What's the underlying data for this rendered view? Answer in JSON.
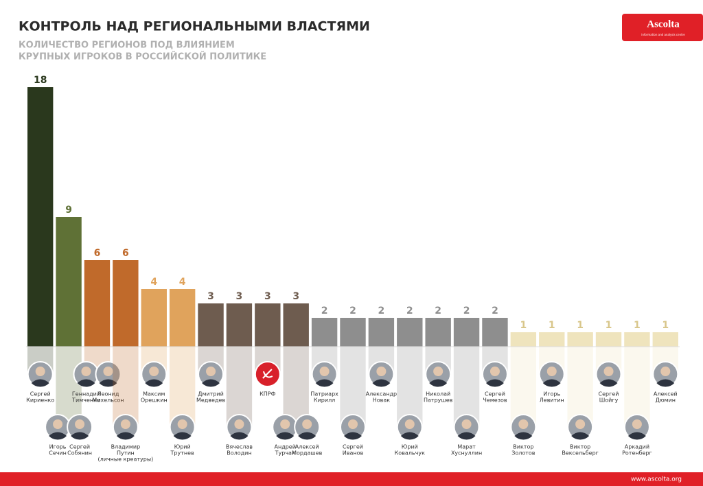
{
  "header": {
    "logo": "Ascolta",
    "logo_tagline": "information and analysis centre"
  },
  "footer": {
    "url": "www.ascolta.org"
  },
  "chart_data": {
    "type": "bar",
    "title": "КОНТРОЛЬ НАД РЕГИОНАЛЬНЫМИ ВЛАСТЯМИ",
    "subtitle": [
      "КОЛИЧЕСТВО РЕГИОНОВ ПОД ВЛИЯНИЕМ",
      "КРУПНЫХ ИГРОКОВ В РОССИЙСКОЙ ПОЛИТИКЕ"
    ],
    "categories": [
      [
        [
          "Сергей",
          "Кириенко"
        ]
      ],
      [
        [
          "Игорь",
          "Сечин"
        ],
        [
          "Сергей",
          "Собянин"
        ]
      ],
      [
        [
          "Геннадий",
          "Тимченко"
        ],
        [
          "Леонид",
          "Михельсон"
        ]
      ],
      [
        [
          "Владимир",
          "Путин",
          "(личные креатуры)"
        ]
      ],
      [
        [
          "Максим",
          "Орешкин"
        ]
      ],
      [
        [
          "Юрий",
          "Трутнев"
        ]
      ],
      [
        [
          "Дмитрий",
          "Медведев"
        ]
      ],
      [
        [
          "Вячеслав",
          "Володин"
        ]
      ],
      [
        [
          "КПРФ"
        ]
      ],
      [
        [
          "Андрей",
          "Турчак"
        ],
        [
          "Алексей",
          "Мордашев"
        ]
      ],
      [
        [
          "Патриарх",
          "Кирилл"
        ]
      ],
      [
        [
          "Сергей",
          "Иванов"
        ]
      ],
      [
        [
          "Александр",
          "Новак"
        ]
      ],
      [
        [
          "Юрий",
          "Ковальчук"
        ]
      ],
      [
        [
          "Николай",
          "Патрушев"
        ]
      ],
      [
        [
          "Марат",
          "Хуснуллин"
        ]
      ],
      [
        [
          "Сергей",
          "Чемезов"
        ]
      ],
      [
        [
          "Виктор",
          "Золотов"
        ]
      ],
      [
        [
          "Игорь",
          "Левитин"
        ]
      ],
      [
        [
          "Виктор",
          "Вексельберг"
        ]
      ],
      [
        [
          "Сергей",
          "Шойгу"
        ]
      ],
      [
        [
          "Аркадий",
          "Ротенберг"
        ]
      ],
      [
        [
          "Алексей",
          "Дюмин"
        ]
      ]
    ],
    "values": [
      18,
      9,
      6,
      6,
      4,
      4,
      3,
      3,
      3,
      3,
      2,
      2,
      2,
      2,
      2,
      2,
      2,
      1,
      1,
      1,
      1,
      1,
      1
    ],
    "colors": [
      "#2a381d",
      "#5f7136",
      "#c06a2b",
      "#c06a2b",
      "#e0a35c",
      "#e0a35c",
      "#6e5c4f",
      "#6e5c4f",
      "#6e5c4f",
      "#6e5c4f",
      "#8e8e8e",
      "#8e8e8e",
      "#8e8e8e",
      "#8e8e8e",
      "#8e8e8e",
      "#8e8e8e",
      "#8e8e8e",
      "#efe4bd",
      "#efe4bd",
      "#efe4bd",
      "#efe4bd",
      "#efe4bd",
      "#efe4bd"
    ],
    "label_colors": [
      "#2a381d",
      "#5f7136",
      "#c06a2b",
      "#c06a2b",
      "#e0a35c",
      "#e0a35c",
      "#6e5c4f",
      "#6e5c4f",
      "#6e5c4f",
      "#6e5c4f",
      "#8e8e8e",
      "#8e8e8e",
      "#8e8e8e",
      "#8e8e8e",
      "#8e8e8e",
      "#8e8e8e",
      "#8e8e8e",
      "#d8c68a",
      "#d8c68a",
      "#d8c68a",
      "#d8c68a",
      "#d8c68a",
      "#d8c68a"
    ],
    "ylim": [
      0,
      18
    ]
  }
}
